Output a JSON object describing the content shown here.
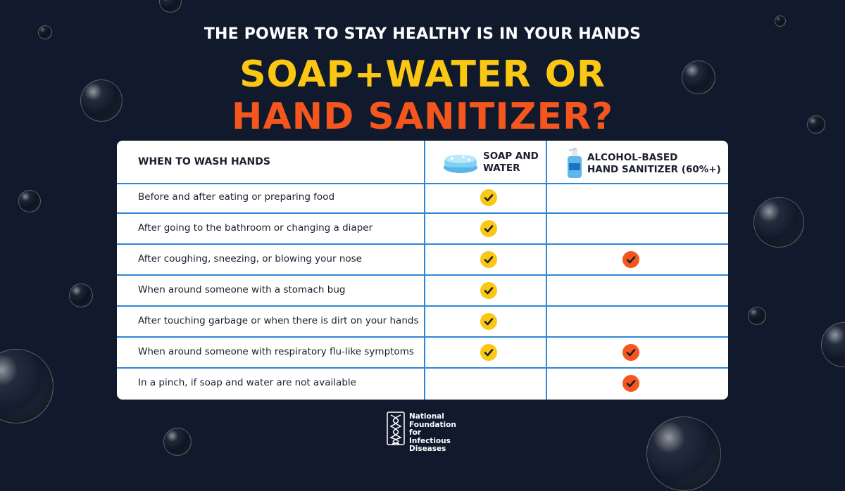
{
  "header": {
    "subtitle": "THE POWER TO STAY HEALTHY IS IN YOUR HANDS",
    "title_line1": "SOAP+WATER OR",
    "title_line2": "HAND SANITIZER?"
  },
  "table": {
    "col1_header": "WHEN TO WASH HANDS",
    "col2_header_line1": "SOAP AND",
    "col2_header_line2": "WATER",
    "col3_header_line1": "ALCOHOL-BASED",
    "col3_header_line2": "HAND SANITIZER (60%+)",
    "rows": [
      {
        "label": "Before and after eating or preparing food",
        "soap": true,
        "sanitizer": false
      },
      {
        "label": "After going to the bathroom or changing a diaper",
        "soap": true,
        "sanitizer": false
      },
      {
        "label": "After coughing, sneezing, or blowing your nose",
        "soap": true,
        "sanitizer": true
      },
      {
        "label": "When around someone with a stomach bug",
        "soap": true,
        "sanitizer": false
      },
      {
        "label": "After touching garbage or when there is dirt on your hands",
        "soap": true,
        "sanitizer": false
      },
      {
        "label": "When around someone with respiratory flu-like symptoms",
        "soap": true,
        "sanitizer": true
      },
      {
        "label": "In a pinch, if soap and water are not available",
        "soap": false,
        "sanitizer": true
      }
    ]
  },
  "logo": {
    "line1": "National",
    "line2": "Foundation for",
    "line3": "Infectious",
    "line4": "Diseases"
  },
  "colors": {
    "background": "#101a2c",
    "yellow": "#fbc713",
    "orange": "#f5561e",
    "divider_blue": "#2f86d6"
  },
  "icons": {
    "soap": "soap-bar-icon",
    "sanitizer": "sanitizer-bottle-icon",
    "check": "checkmark-icon"
  }
}
